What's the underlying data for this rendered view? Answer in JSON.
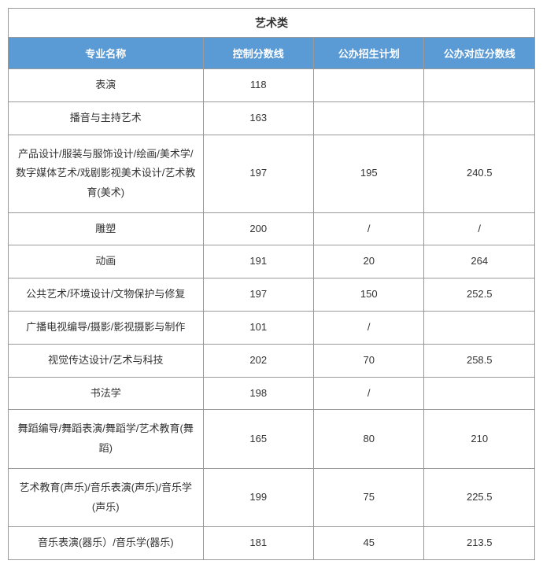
{
  "table": {
    "title": "艺术类",
    "columns": [
      "专业名称",
      "控制分数线",
      "公办招生计划",
      "公办对应分数线"
    ],
    "rows": [
      {
        "major": "表演",
        "control_line": "118",
        "plan": "",
        "score": ""
      },
      {
        "major": "播音与主持艺术",
        "control_line": "163",
        "plan": "",
        "score": ""
      },
      {
        "major": "产品设计/服装与服饰设计/绘画/美术学/数字媒体艺术/戏剧影视美术设计/艺术教育(美术)",
        "control_line": "197",
        "plan": "195",
        "score": "240.5",
        "multiline": true
      },
      {
        "major": "雕塑",
        "control_line": "200",
        "plan": "/",
        "score": "/"
      },
      {
        "major": "动画",
        "control_line": "191",
        "plan": "20",
        "score": "264"
      },
      {
        "major": "公共艺术/环境设计/文物保护与修复",
        "control_line": "197",
        "plan": "150",
        "score": "252.5"
      },
      {
        "major": "广播电视编导/摄影/影视摄影与制作",
        "control_line": "101",
        "plan": "/",
        "score": ""
      },
      {
        "major": "视觉传达设计/艺术与科技",
        "control_line": "202",
        "plan": "70",
        "score": "258.5"
      },
      {
        "major": "书法学",
        "control_line": "198",
        "plan": "/",
        "score": ""
      },
      {
        "major": "舞蹈编导/舞蹈表演/舞蹈学/艺术教育(舞蹈)",
        "control_line": "165",
        "plan": "80",
        "score": "210",
        "multiline": true
      },
      {
        "major": "艺术教育(声乐)/音乐表演(声乐)/音乐学(声乐)",
        "control_line": "199",
        "plan": "75",
        "score": "225.5",
        "multiline": true
      },
      {
        "major": "音乐表演(器乐）/音乐学(器乐)",
        "control_line": "181",
        "plan": "45",
        "score": "213.5"
      }
    ],
    "header_bg_color": "#5b9bd5",
    "header_text_color": "#ffffff",
    "border_color": "#999999",
    "body_text_color": "#333333"
  }
}
